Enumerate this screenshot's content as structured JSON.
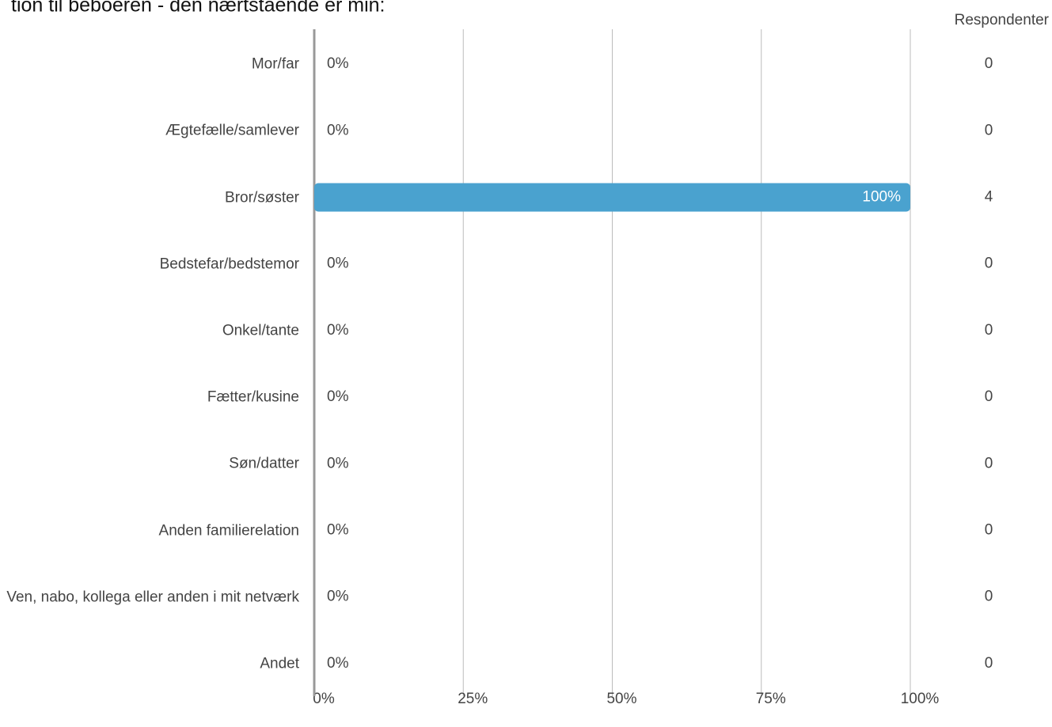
{
  "chart_data": {
    "type": "bar",
    "orientation": "horizontal",
    "title": "tion til beboeren - den nærtstående er min:",
    "categories": [
      "Mor/far",
      "Ægtefælle/samlever",
      "Bror/søster",
      "Bedstefar/bedstemor",
      "Onkel/tante",
      "Fætter/kusine",
      "Søn/datter",
      "Anden familierelation",
      "Ven, nabo, kollega eller anden i mit netværk",
      "Andet"
    ],
    "values": [
      0,
      0,
      100,
      0,
      0,
      0,
      0,
      0,
      0,
      0
    ],
    "value_labels": [
      "0%",
      "0%",
      "100%",
      "0%",
      "0%",
      "0%",
      "0%",
      "0%",
      "0%",
      "0%"
    ],
    "color": "#4aa2cf",
    "xlim": [
      0,
      100
    ],
    "xticks": [
      {
        "value": 0,
        "label": "0%"
      },
      {
        "value": 25,
        "label": "25%"
      },
      {
        "value": 50,
        "label": "50%"
      },
      {
        "value": 75,
        "label": "75%"
      },
      {
        "value": 100,
        "label": "100%"
      }
    ],
    "grid": true,
    "respondents_header": "Respondenter",
    "respondents": [
      0,
      0,
      4,
      0,
      0,
      0,
      0,
      0,
      0,
      0
    ]
  }
}
